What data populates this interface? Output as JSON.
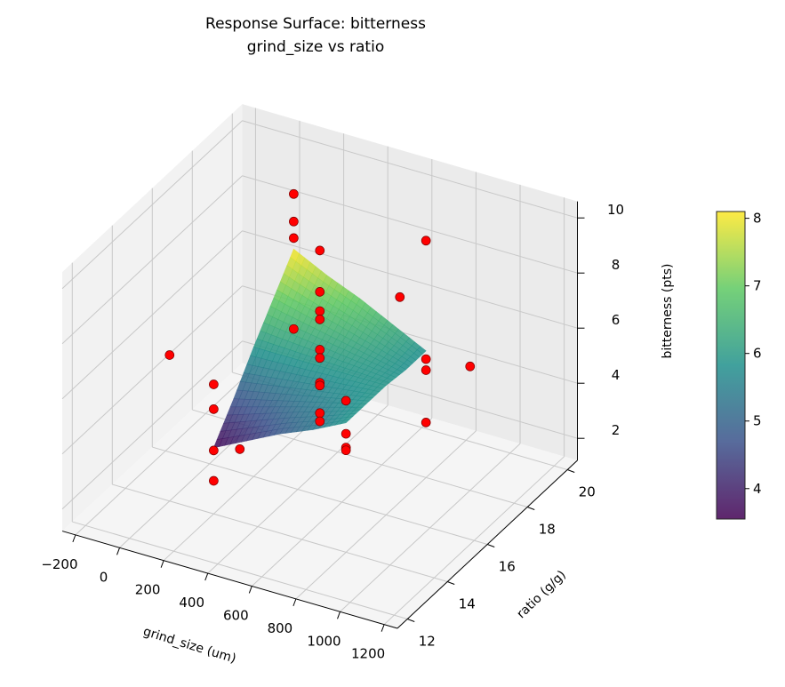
{
  "chart_data": {
    "type": "surface3d",
    "title": "Response Surface: bitterness",
    "subtitle": "grind_size vs ratio",
    "xlabel": "grind_size (um)",
    "ylabel": "ratio (g/g)",
    "zlabel": "bitterness (pts)",
    "xlim": [
      -260,
      1260
    ],
    "ylim": [
      11.5,
      20.5
    ],
    "zlim": [
      1.2,
      10.6
    ],
    "xticks": [
      -200,
      0,
      200,
      400,
      600,
      800,
      1000,
      1200
    ],
    "yticks": [
      12,
      14,
      16,
      18,
      20
    ],
    "zticks": [
      2,
      4,
      6,
      8,
      10
    ],
    "grid": true,
    "colormap": "viridis",
    "surface": {
      "x": [
        200,
        350,
        500,
        650,
        800
      ],
      "y": [
        14,
        15,
        16,
        17,
        18
      ],
      "z": [
        [
          3.6,
          4.7,
          5.9,
          7.0,
          8.1
        ],
        [
          4.2,
          5.0,
          5.9,
          6.7,
          7.5
        ],
        [
          4.8,
          5.3,
          5.9,
          6.4,
          7.0
        ],
        [
          5.3,
          5.6,
          5.9,
          6.1,
          6.4
        ],
        [
          5.9,
          5.9,
          5.9,
          5.8,
          5.8
        ]
      ]
    },
    "points": [
      [
        200,
        14,
        5.9
      ],
      [
        200,
        14,
        5.0
      ],
      [
        200,
        14,
        3.5
      ],
      [
        200,
        14,
        2.4
      ],
      [
        800,
        18,
        9.8
      ],
      [
        800,
        18,
        5.5
      ],
      [
        800,
        18,
        5.1
      ],
      [
        800,
        18,
        3.2
      ],
      [
        200,
        18,
        10.1
      ],
      [
        200,
        18,
        9.1
      ],
      [
        200,
        18,
        8.5
      ],
      [
        200,
        18,
        5.2
      ],
      [
        800,
        14,
        6.7
      ],
      [
        800,
        14,
        5.5
      ],
      [
        800,
        14,
        5.0
      ],
      [
        800,
        14,
        4.9
      ],
      [
        0,
        14,
        6.5
      ],
      [
        500,
        12,
        5.6
      ],
      [
        500,
        20,
        5.7
      ],
      [
        1000,
        18,
        5.7
      ],
      [
        500,
        16,
        10.1
      ],
      [
        500,
        16,
        8.6
      ],
      [
        500,
        16,
        7.9
      ],
      [
        500,
        16,
        7.6
      ],
      [
        500,
        16,
        6.5
      ],
      [
        500,
        16,
        6.2
      ],
      [
        500,
        16,
        5.3
      ],
      [
        500,
        16,
        5.2
      ],
      [
        500,
        16,
        4.2
      ],
      [
        500,
        16,
        3.9
      ]
    ],
    "point_color": "#ff0000",
    "colorbar": {
      "min": 3.55,
      "max": 8.1,
      "ticks": [
        4,
        5,
        6,
        7,
        8
      ]
    }
  }
}
